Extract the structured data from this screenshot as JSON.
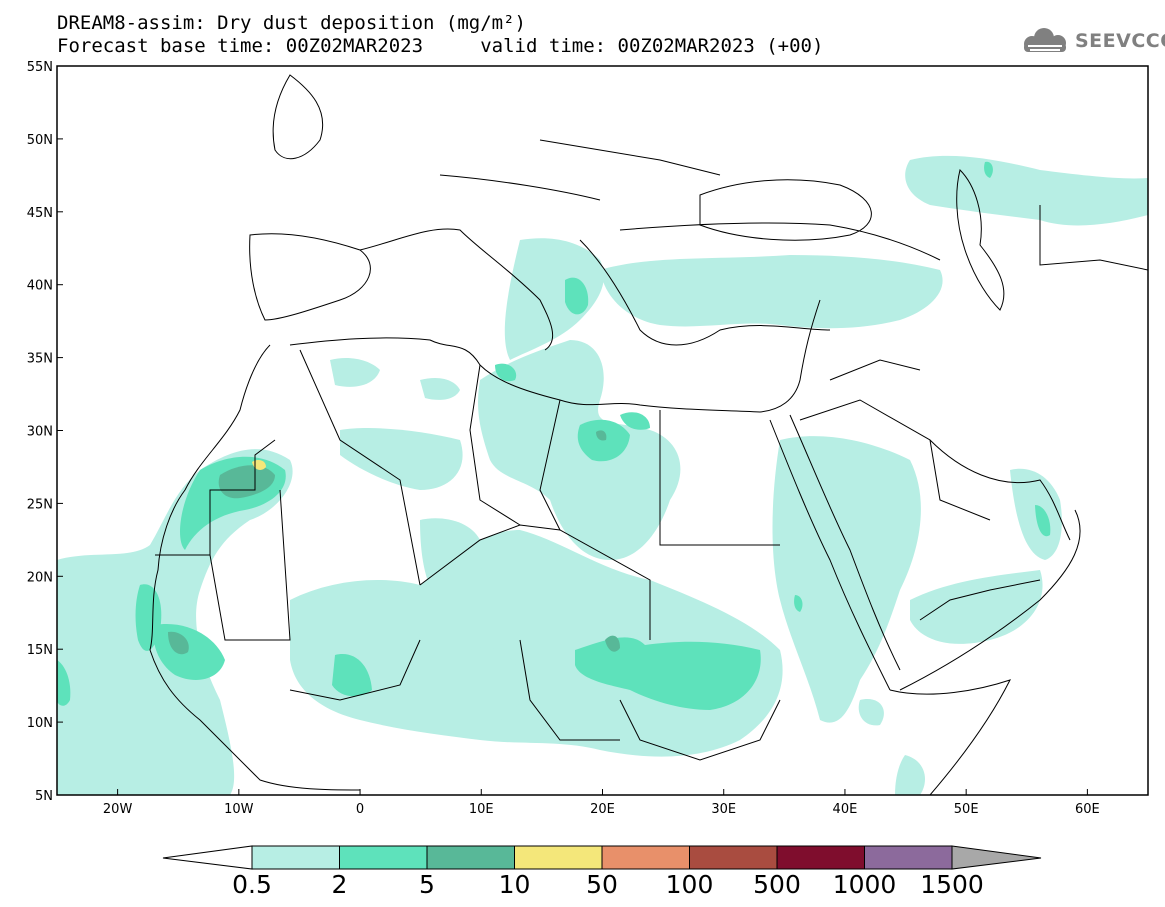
{
  "header": {
    "line1": "DREAM8-assim: Dry dust deposition (mg/m²)",
    "line2": "Forecast base time: 00Z02MAR2023     valid time: 00Z02MAR2023 (+00)",
    "logo_text": "SEEVCCC"
  },
  "map": {
    "lat_range": [
      5,
      55
    ],
    "lon_range": [
      -25,
      65
    ],
    "lat_ticks": [
      "55N",
      "50N",
      "45N",
      "40N",
      "35N",
      "30N",
      "25N",
      "20N",
      "15N",
      "10N",
      "5N"
    ],
    "lon_ticks": [
      "20W",
      "10W",
      "0",
      "10E",
      "20E",
      "30E",
      "40E",
      "50E",
      "60E"
    ]
  },
  "legend": {
    "labels": [
      "0.5",
      "2",
      "5",
      "10",
      "50",
      "100",
      "500",
      "1000",
      "1500"
    ],
    "colors": [
      "#b7eee4",
      "#5ee2bb",
      "#58b898",
      "#f4e77a",
      "#e8906a",
      "#a94c40",
      "#7f0d2d",
      "#8c6a9c"
    ],
    "under_color": "#ffffff",
    "over_color": "#a8a8a8"
  },
  "colors": {
    "level1": "#b7eee4",
    "level2": "#5ee2bb",
    "level3": "#58b898",
    "level4": "#f4e77a"
  }
}
